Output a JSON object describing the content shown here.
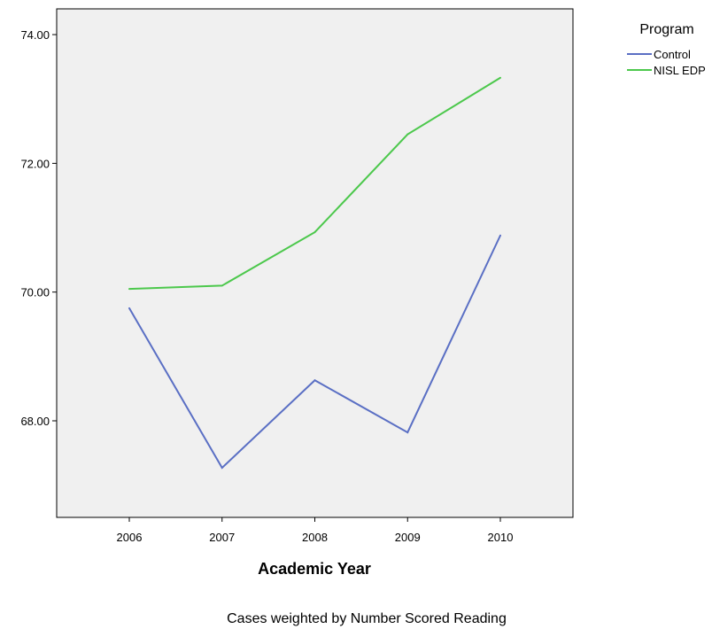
{
  "chart_data": {
    "type": "line",
    "title": "",
    "xlabel": "Academic Year",
    "ylabel": "",
    "x": [
      "2006",
      "2007",
      "2008",
      "2009",
      "2010"
    ],
    "ylim": [
      66.5,
      74.4
    ],
    "yticks": [
      "68.00",
      "70.00",
      "72.00",
      "74.00"
    ],
    "grid": false,
    "legend": {
      "title": "Program",
      "position": "right"
    },
    "series": [
      {
        "name": "Control",
        "color": "#5a6fc4",
        "values": [
          69.75,
          67.27,
          68.63,
          67.82,
          70.88
        ]
      },
      {
        "name": "NISL EDP",
        "color": "#4cc84c",
        "values": [
          70.05,
          70.1,
          70.93,
          72.45,
          73.33
        ]
      }
    ],
    "plot_background": "#f0f0f0",
    "footnote": "Cases weighted by Number Scored Reading"
  }
}
